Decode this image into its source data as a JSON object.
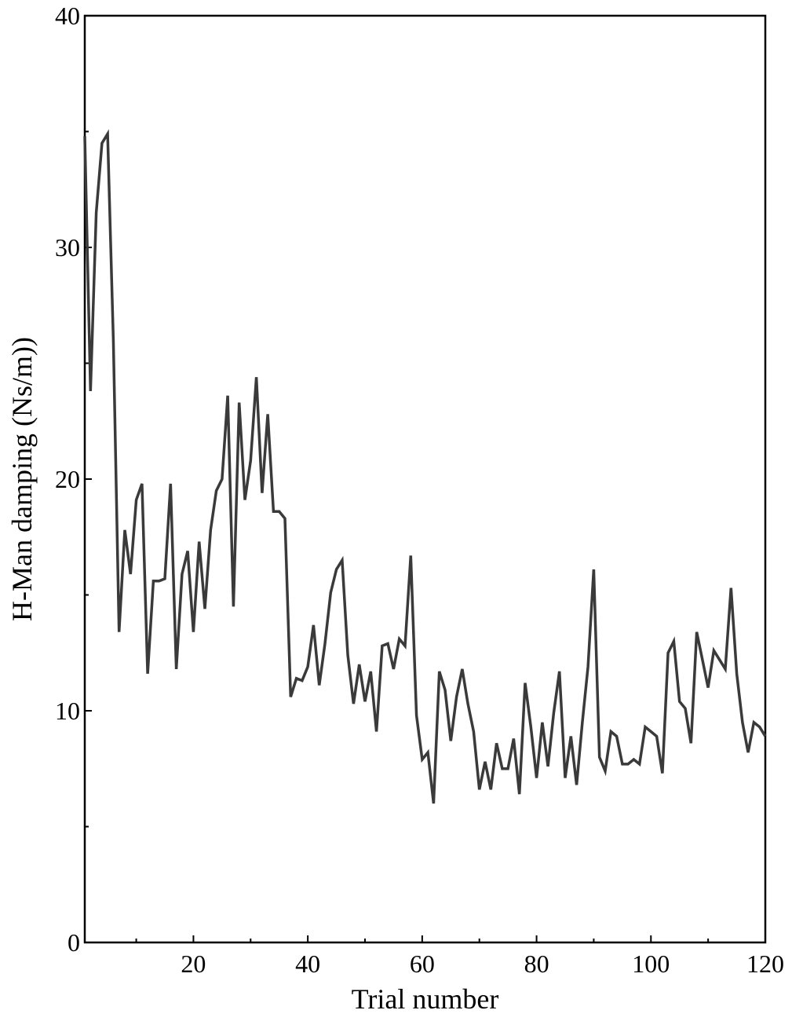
{
  "chart_data": {
    "type": "line",
    "title": "",
    "xlabel": "Trial number",
    "ylabel": "H-Man damping (Ns/m))",
    "xlim": [
      1,
      120
    ],
    "ylim": [
      0,
      40
    ],
    "x_ticks": [
      20,
      40,
      60,
      80,
      100,
      120
    ],
    "x_tick_labels": [
      "20",
      "40",
      "60",
      "80",
      "100",
      "120"
    ],
    "y_ticks": [
      0,
      10,
      20,
      30,
      40
    ],
    "y_tick_labels": [
      "0",
      "10",
      "20",
      "30",
      "40"
    ],
    "x_minor_ticks": [
      10,
      30,
      50,
      70,
      90,
      110
    ],
    "y_minor_ticks": [
      5,
      15,
      25,
      35
    ],
    "grid": false,
    "legend": "none",
    "line_color": "#3a3a3a",
    "series": [
      {
        "x": [
          1,
          2,
          3,
          4,
          5,
          6,
          7,
          8,
          9,
          10,
          11,
          12,
          13,
          14,
          15,
          16,
          17,
          18,
          19,
          20,
          21,
          22,
          23,
          24,
          25,
          26,
          27,
          28,
          29,
          30,
          31,
          32,
          33,
          34,
          35,
          36,
          37,
          38,
          39,
          40,
          41,
          42,
          43,
          44,
          45,
          46,
          47,
          48,
          49,
          50,
          51,
          52,
          53,
          54,
          55,
          56,
          57,
          58,
          59,
          60,
          61,
          62,
          63,
          64,
          65,
          66,
          67,
          68,
          69,
          70,
          71,
          72,
          73,
          74,
          75,
          76,
          77,
          78,
          79,
          80,
          81,
          82,
          83,
          84,
          85,
          86,
          87,
          88,
          89,
          90,
          91,
          92,
          93,
          94,
          95,
          96,
          97,
          98,
          99,
          100,
          101,
          102,
          103,
          104,
          105,
          106,
          107,
          108,
          109,
          110,
          111,
          112,
          113,
          114,
          115,
          116,
          117,
          118,
          119,
          120
        ],
        "y": [
          34.8,
          23.8,
          31.5,
          34.5,
          34.9,
          26.0,
          13.4,
          17.8,
          15.9,
          19.1,
          19.8,
          11.6,
          15.6,
          15.6,
          15.7,
          19.8,
          11.8,
          15.9,
          16.9,
          13.4,
          17.3,
          14.4,
          17.8,
          19.5,
          20.0,
          23.6,
          14.5,
          23.3,
          19.1,
          20.8,
          24.4,
          19.4,
          22.8,
          18.6,
          18.6,
          18.3,
          10.6,
          11.4,
          11.3,
          11.9,
          13.7,
          11.1,
          12.9,
          15.1,
          16.1,
          16.5,
          12.4,
          10.3,
          12.0,
          10.4,
          11.7,
          9.1,
          12.8,
          12.9,
          11.8,
          13.1,
          12.8,
          16.7,
          9.8,
          7.9,
          8.2,
          6.0,
          11.7,
          10.9,
          8.7,
          10.6,
          11.8,
          10.3,
          9.1,
          6.6,
          7.8,
          6.6,
          8.6,
          7.5,
          7.5,
          8.8,
          6.4,
          11.2,
          9.3,
          7.1,
          9.5,
          7.6,
          9.9,
          11.7,
          7.1,
          8.9,
          6.8,
          9.5,
          11.9,
          16.1,
          8.0,
          7.4,
          9.1,
          8.9,
          7.7,
          7.7,
          7.9,
          7.7,
          9.3,
          9.1,
          8.9,
          7.3,
          12.5,
          13.0,
          10.4,
          10.1,
          8.6,
          13.4,
          12.2,
          11.0,
          12.6,
          12.2,
          11.8,
          15.3,
          11.6,
          9.5,
          8.2,
          9.5,
          9.3,
          8.9
        ]
      }
    ]
  }
}
